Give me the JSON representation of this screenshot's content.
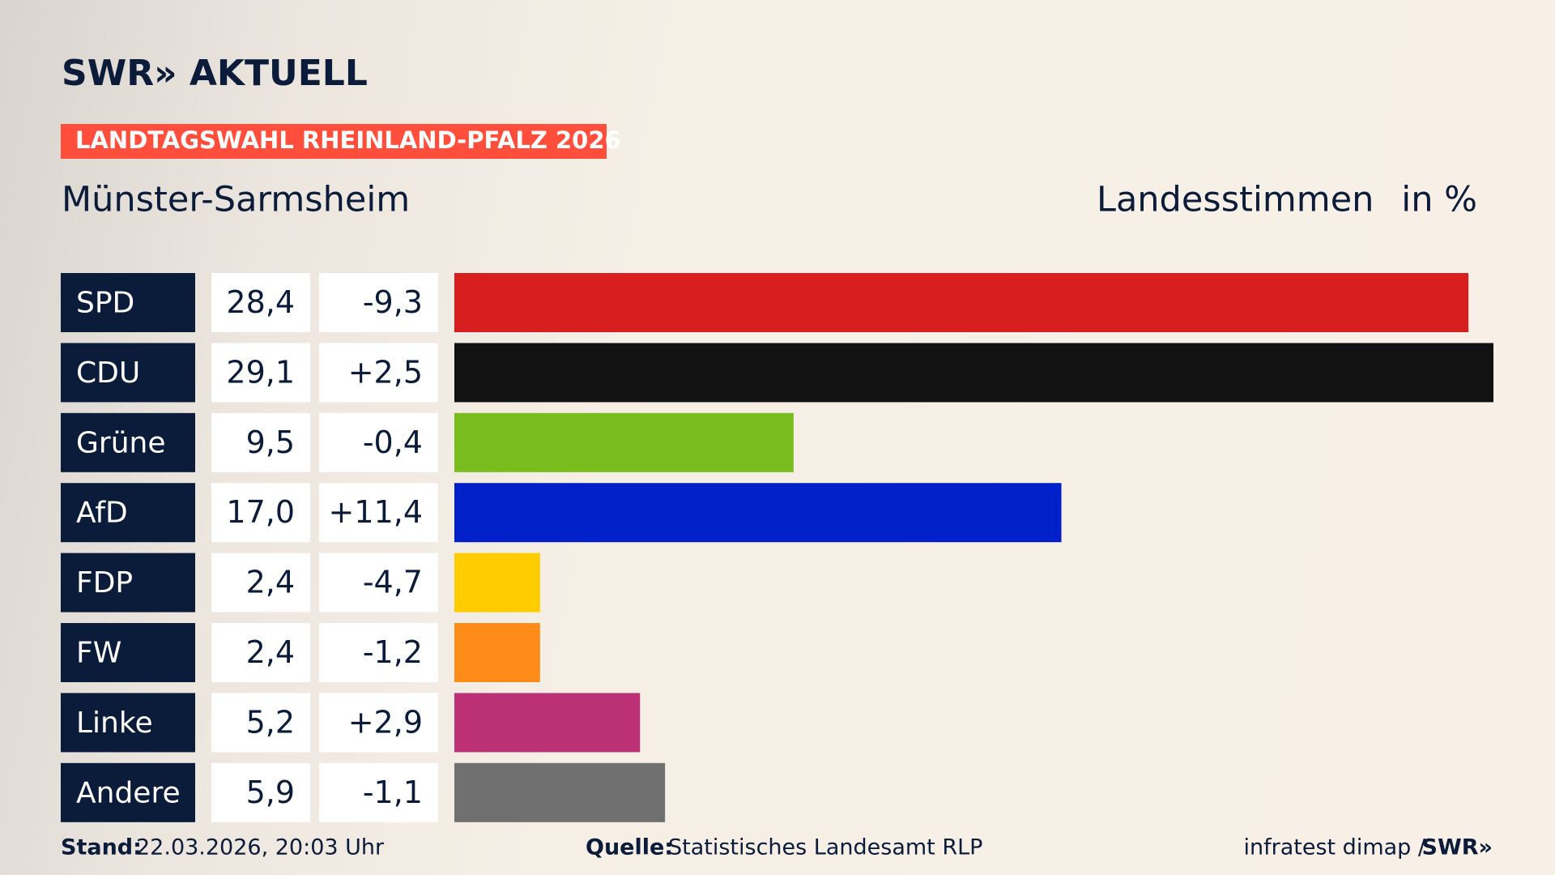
{
  "logo": "SWR» AKTUELL",
  "tag": "LANDTAGSWAHL RHEINLAND-PFALZ 2026",
  "chart_data": {
    "type": "bar",
    "title": "Münster-Sarmsheim",
    "subtitle": "Landesstimmen",
    "unit": "in %",
    "categories": [
      "SPD",
      "CDU",
      "Grüne",
      "AfD",
      "FDP",
      "FW",
      "Linke",
      "Andere"
    ],
    "values": [
      28.4,
      29.1,
      9.5,
      17.0,
      2.4,
      2.4,
      5.2,
      5.9
    ],
    "value_labels": [
      "28,4",
      "29,1",
      "9,5",
      "17,0",
      "2,4",
      "2,4",
      "5,2",
      "5,9"
    ],
    "changes": [
      -9.3,
      2.5,
      -0.4,
      11.4,
      -4.7,
      -1.2,
      2.9,
      -1.1
    ],
    "change_labels": [
      "-9,3",
      "+2,5",
      "-0,4",
      "+11,4",
      "-4,7",
      "-1,2",
      "+2,9",
      "-1,1"
    ],
    "colors": [
      "#d71f20",
      "#121212",
      "#79bc1d",
      "#0020c9",
      "#ffcc00",
      "#ff8c19",
      "#bc3175",
      "#707070"
    ],
    "xlim": [
      0,
      29.1
    ]
  },
  "footer": {
    "stand_label": "Stand:",
    "stand": "22.03.2026, 20:03 Uhr",
    "source_label": "Quelle:",
    "source": "Statistisches Landesamt RLP",
    "credit": "infratest dimap /",
    "brand": "SWR»"
  }
}
